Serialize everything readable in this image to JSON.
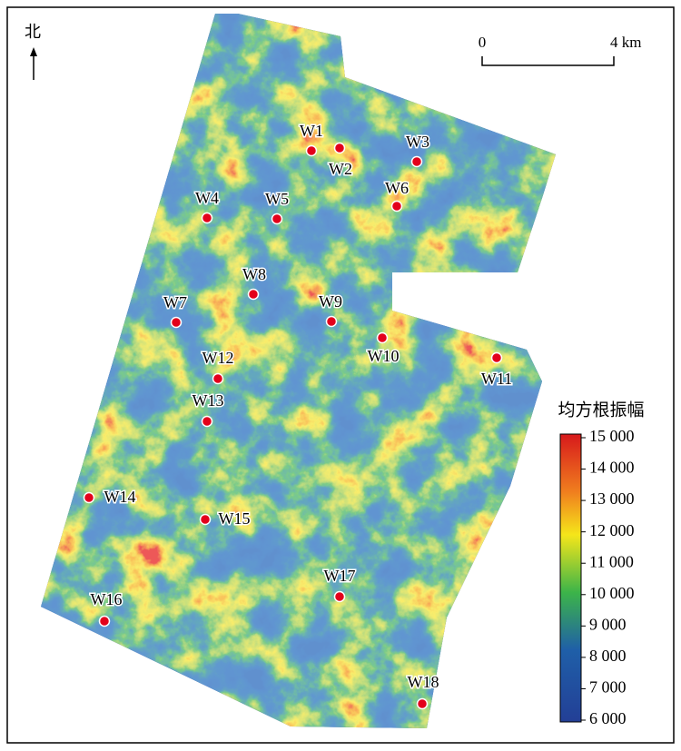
{
  "north": "北",
  "scale_bar": {
    "labels": [
      "0",
      "4 km"
    ]
  },
  "wells": [
    "W1",
    "W2",
    "W3",
    "W4",
    "W5",
    "W6",
    "W7",
    "W8",
    "W9",
    "W10",
    "W11",
    "W12",
    "W13",
    "W14",
    "W15",
    "W16",
    "W17",
    "W18"
  ],
  "legend": {
    "title": "均方根振幅",
    "range": [
      6000,
      15000
    ],
    "ticks": [
      {
        "value": 15000,
        "label": "15 000"
      },
      {
        "value": 14000,
        "label": "14 000"
      },
      {
        "value": 13000,
        "label": "13 000"
      },
      {
        "value": 12000,
        "label": "12 000"
      },
      {
        "value": 11000,
        "label": "11 000"
      },
      {
        "value": 10000,
        "label": "10 000"
      },
      {
        "value": 9000,
        "label": "9 000"
      },
      {
        "value": 8000,
        "label": "8 000"
      },
      {
        "value": 7000,
        "label": "7 000"
      },
      {
        "value": 6000,
        "label": "6 000"
      }
    ]
  }
}
